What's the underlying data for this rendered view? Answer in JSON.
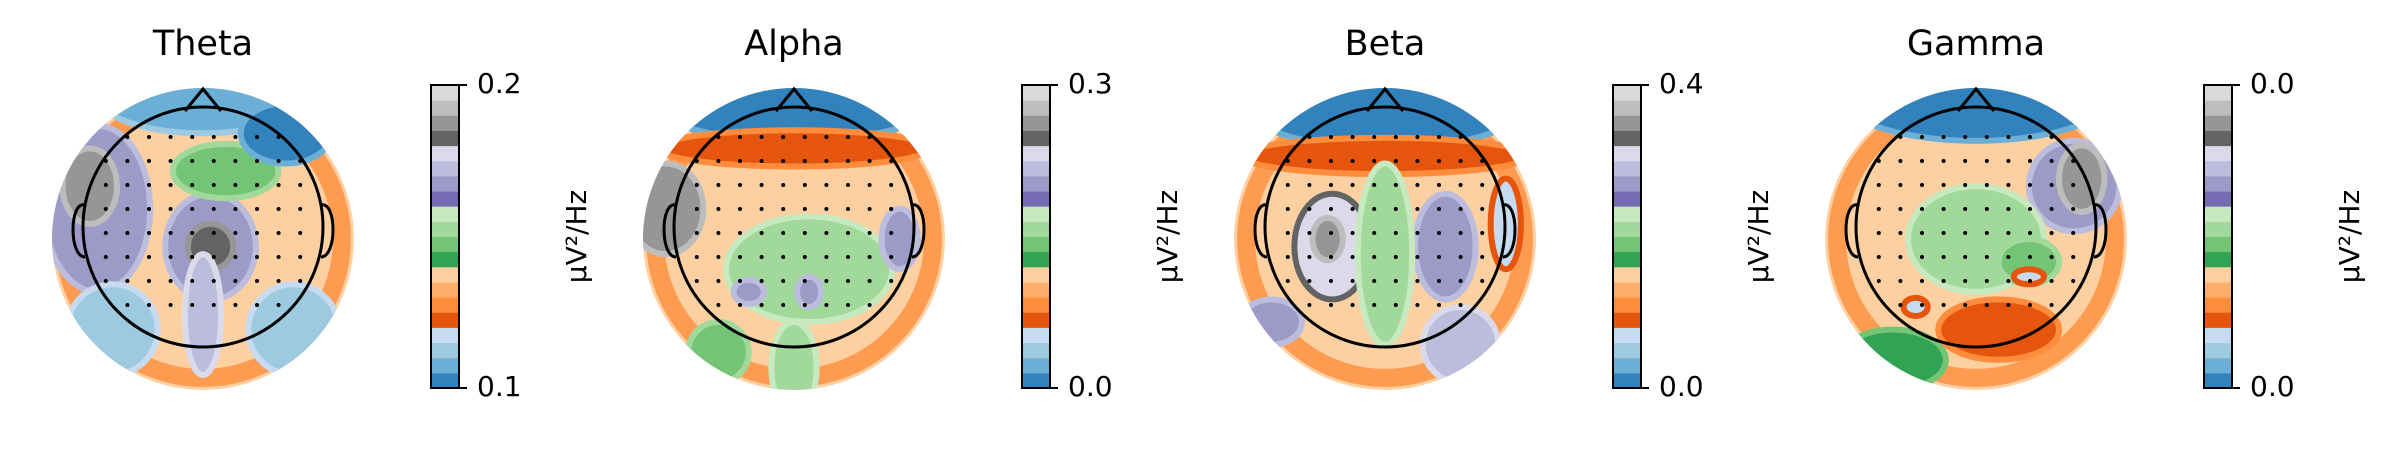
{
  "chart_data": [
    {
      "type": "topomap",
      "title": "Theta",
      "colorbar_label": "µV²/Hz",
      "ylim": [
        0.1,
        0.2
      ],
      "yticks": [
        0.1,
        0.2
      ],
      "colormap": [
        "#3182bd",
        "#6baed6",
        "#9ecae1",
        "#c6dbef",
        "#e6550d",
        "#fd8d3c",
        "#fdae6b",
        "#fdd0a2",
        "#31a354",
        "#74c476",
        "#a1d99b",
        "#c7e9c0",
        "#756bb1",
        "#9e9ac8",
        "#bcbddc",
        "#dadaeb",
        "#636363",
        "#969696",
        "#bdbdbd",
        "#d9d9d9"
      ]
    },
    {
      "type": "topomap",
      "title": "Alpha",
      "colorbar_label": "µV²/Hz",
      "ylim": [
        0.0,
        0.3
      ],
      "yticks": [
        {
          "value": 0.0,
          "label": "0.0"
        },
        0.3
      ],
      "colormap": [
        "#3182bd",
        "#6baed6",
        "#9ecae1",
        "#c6dbef",
        "#e6550d",
        "#fd8d3c",
        "#fdae6b",
        "#fdd0a2",
        "#31a354",
        "#74c476",
        "#a1d99b",
        "#c7e9c0",
        "#756bb1",
        "#9e9ac8",
        "#bcbddc",
        "#dadaeb",
        "#636363",
        "#969696",
        "#bdbdbd",
        "#d9d9d9"
      ]
    },
    {
      "type": "topomap",
      "title": "Beta",
      "colorbar_label": "µV²/Hz",
      "ylim": [
        0.0,
        0.4
      ],
      "yticks": [
        {
          "value": 0.0,
          "label": "0.0"
        },
        0.4
      ],
      "colormap": [
        "#3182bd",
        "#6baed6",
        "#9ecae1",
        "#c6dbef",
        "#e6550d",
        "#fd8d3c",
        "#fdae6b",
        "#fdd0a2",
        "#31a354",
        "#74c476",
        "#a1d99b",
        "#c7e9c0",
        "#756bb1",
        "#9e9ac8",
        "#bcbddc",
        "#dadaeb",
        "#636363",
        "#969696",
        "#bdbdbd",
        "#d9d9d9"
      ]
    },
    {
      "type": "topomap",
      "title": "Gamma",
      "colorbar_label": "µV²/Hz",
      "ylim": [
        0.0,
        0.04
      ],
      "yticks": [
        {
          "value": 0.0,
          "label": "0.0"
        },
        {
          "value": 0.04,
          "label": "0.0"
        }
      ],
      "colormap": [
        "#3182bd",
        "#6baed6",
        "#9ecae1",
        "#c6dbef",
        "#e6550d",
        "#fd8d3c",
        "#fdae6b",
        "#fdd0a2",
        "#31a354",
        "#74c476",
        "#a1d99b",
        "#c7e9c0",
        "#756bb1",
        "#9e9ac8",
        "#bcbddc",
        "#dadaeb",
        "#636363",
        "#969696",
        "#bdbdbd",
        "#d9d9d9"
      ]
    }
  ]
}
